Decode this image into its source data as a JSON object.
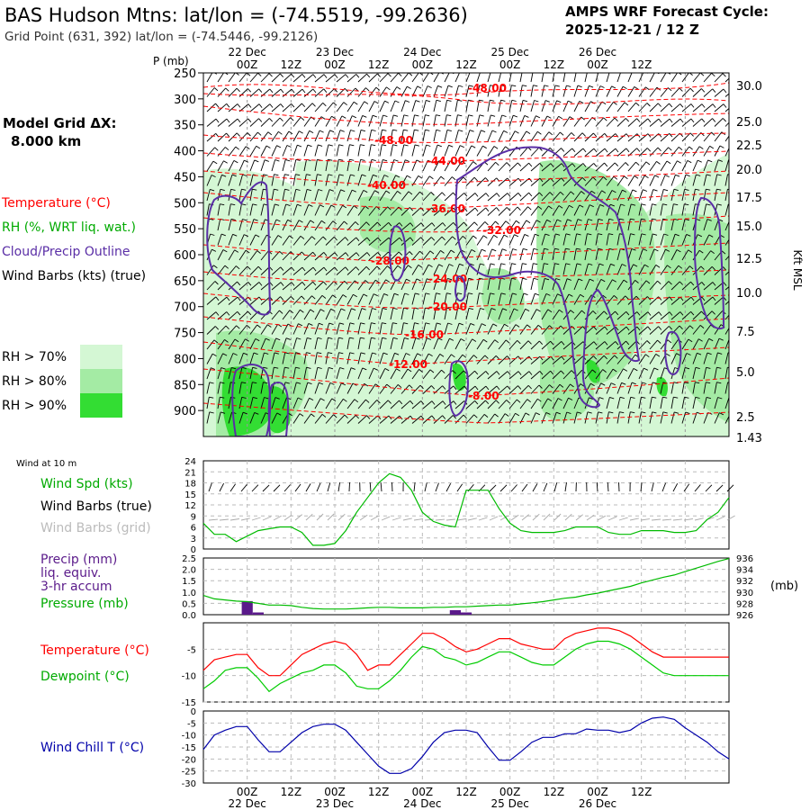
{
  "header": {
    "title": "BAS Hudson Mtns:  lat/lon = (-74.5519, -99.2636)",
    "subtitle": "Grid Point (631, 392) lat/lon = (-74.5446, -99.2126)",
    "cycle_line1": "AMPS WRF Forecast Cycle:",
    "cycle_line2": "2025-12-21 / 12  Z"
  },
  "legend": {
    "grid_line1": "Model Grid ΔX:",
    "grid_line2": "8.000 km",
    "temperature": "Temperature (°C)",
    "rh": "RH (%, WRT liq. wat.)",
    "cloud": "Cloud/Precip Outline",
    "wind": "Wind Barbs (kts) (true)",
    "rh70": "RH > 70%",
    "rh80": "RH > 80%",
    "rh90": "RH > 90%"
  },
  "colors": {
    "temperature": "#ff0000",
    "rh_text": "#00aa00",
    "cloud": "#5a2ea6",
    "rh70": "#d4f7d4",
    "rh80": "#a4eba4",
    "rh90": "#33dd33",
    "dewpoint": "#00cc00",
    "windchill": "#0000aa",
    "precip": "#5a1a8a"
  },
  "time_axis": {
    "date_labels": [
      "22 Dec",
      "23 Dec",
      "24 Dec",
      "25 Dec",
      "26 Dec"
    ],
    "hour_labels": [
      "00Z",
      "12Z",
      "00Z",
      "12Z",
      "00Z",
      "12Z",
      "00Z",
      "12Z",
      "00Z",
      "12Z"
    ]
  },
  "chart_data": [
    {
      "type": "heatmap",
      "name": "cross-section",
      "ylabel_left": "P (mb)",
      "ylabel_right": "Kft MSL",
      "pressure_ticks": [
        "250",
        "300",
        "350",
        "400",
        "450",
        "500",
        "550",
        "600",
        "650",
        "700",
        "750",
        "800",
        "850",
        "900"
      ],
      "height_ticks": [
        "30.0",
        "25.0",
        "22.5",
        "20.0",
        "17.5",
        "15.0",
        "12.5",
        "10.0",
        "7.5",
        "5.0",
        "2.5",
        "1.43"
      ],
      "isotherm_labels": [
        "-48.00",
        "-48.00",
        "-44.00",
        "-40.00",
        "-36.00",
        "-32.00",
        "-28.00",
        "-24.00",
        "-20.00",
        "-16.00",
        "-12.00",
        "-8.00"
      ]
    },
    {
      "type": "line",
      "name": "wind",
      "side_label": "Wind at 10 m",
      "labels": [
        "Wind Spd (kts)",
        "Wind Barbs (true)",
        "Wind Barbs (grid)"
      ],
      "yticks": [
        "24",
        "21",
        "18",
        "15",
        "12",
        "9",
        "6",
        "3",
        "0"
      ],
      "ylim": [
        0,
        24
      ],
      "series": [
        {
          "name": "Wind Spd (kts)",
          "x": [
            0,
            3,
            6,
            9,
            12,
            15,
            18,
            21,
            24,
            27,
            30,
            33,
            36,
            39,
            42,
            45,
            48,
            51,
            54,
            57,
            60,
            63,
            66,
            69,
            72,
            75,
            78,
            81,
            84,
            87,
            90,
            93,
            96,
            99,
            102,
            105,
            108,
            111,
            114,
            117,
            120,
            123,
            126,
            129,
            132,
            135,
            138,
            141,
            144
          ],
          "values": [
            7,
            4,
            4,
            2,
            3.5,
            5,
            5.5,
            6,
            6,
            4.5,
            1,
            1,
            1.5,
            5,
            10,
            14,
            18,
            20.5,
            19.5,
            16,
            10,
            7.5,
            6.5,
            6,
            16,
            16,
            16,
            11,
            7,
            5,
            4.5,
            4.5,
            4.5,
            5,
            6,
            6,
            6,
            4.5,
            4,
            4,
            5,
            5,
            5,
            4.5,
            4.5,
            5,
            8,
            10,
            14
          ]
        }
      ]
    },
    {
      "type": "line",
      "name": "precip-pressure",
      "labels": [
        "Precip (mm)",
        "liq. equiv.",
        "3-hr accum",
        "Pressure (mb)"
      ],
      "unit_right": "(mb)",
      "yticks_left": [
        "2.5",
        "2.0",
        "1.5",
        "1.0",
        "0.5",
        "0.0"
      ],
      "yticks_right": [
        "936",
        "934",
        "932",
        "930",
        "928",
        "926"
      ],
      "precip_bars": [
        {
          "x": 0,
          "value": 0.0
        },
        {
          "x": 12,
          "value": 0.6
        },
        {
          "x": 15,
          "value": 0.1
        },
        {
          "x": 69,
          "value": 0.2
        },
        {
          "x": 72,
          "value": 0.1
        }
      ],
      "series": [
        {
          "name": "Pressure (mb)",
          "x": [
            0,
            3,
            6,
            9,
            12,
            15,
            18,
            21,
            24,
            27,
            30,
            33,
            36,
            39,
            42,
            45,
            48,
            51,
            54,
            57,
            60,
            63,
            66,
            69,
            72,
            75,
            78,
            81,
            84,
            87,
            90,
            93,
            96,
            99,
            102,
            105,
            108,
            111,
            114,
            117,
            120,
            123,
            126,
            129,
            132,
            135,
            138,
            141,
            144
          ],
          "values": [
            929.4,
            928.8,
            928.6,
            928.4,
            928.3,
            928.0,
            927.7,
            927.7,
            927.6,
            927.3,
            927.1,
            927.0,
            927.0,
            927.0,
            927.1,
            927.2,
            927.3,
            927.3,
            927.2,
            927.2,
            927.2,
            927.3,
            927.3,
            927.4,
            927.4,
            927.5,
            927.6,
            927.7,
            927.7,
            927.9,
            928.1,
            928.3,
            928.6,
            928.9,
            929.1,
            929.5,
            929.8,
            930.2,
            930.6,
            931.0,
            931.6,
            932.1,
            932.6,
            933.0,
            933.6,
            934.2,
            934.8,
            935.4,
            935.9
          ]
        }
      ]
    },
    {
      "type": "line",
      "name": "temperature-dewpoint",
      "labels": [
        "Temperature (°C)",
        "Dewpoint (°C)"
      ],
      "yticks": [
        "-5",
        "-10",
        "-15"
      ],
      "ylim": [
        -15,
        0
      ],
      "series": [
        {
          "name": "Temperature (°C)",
          "x": [
            0,
            3,
            6,
            9,
            12,
            15,
            18,
            21,
            24,
            27,
            30,
            33,
            36,
            39,
            42,
            45,
            48,
            51,
            54,
            57,
            60,
            63,
            66,
            69,
            72,
            75,
            78,
            81,
            84,
            87,
            90,
            93,
            96,
            99,
            102,
            105,
            108,
            111,
            114,
            117,
            120,
            123,
            126,
            129,
            132,
            135,
            138,
            141,
            144
          ],
          "values": [
            -9,
            -7,
            -6.5,
            -6,
            -6,
            -8.5,
            -10,
            -10,
            -8,
            -6,
            -5,
            -4,
            -3.5,
            -4,
            -6,
            -9,
            -8,
            -8,
            -6,
            -4,
            -2,
            -2,
            -3,
            -4.5,
            -5.5,
            -5,
            -4,
            -3,
            -3,
            -4,
            -4.5,
            -5,
            -5,
            -3,
            -2,
            -1.5,
            -1,
            -1,
            -1.5,
            -2.5,
            -4,
            -5.5,
            -6.5,
            -6.5,
            -6.5,
            -6.5,
            -6.5,
            -6.5,
            -6.5
          ]
        },
        {
          "name": "Dewpoint (°C)",
          "x": [
            0,
            3,
            6,
            9,
            12,
            15,
            18,
            21,
            24,
            27,
            30,
            33,
            36,
            39,
            42,
            45,
            48,
            51,
            54,
            57,
            60,
            63,
            66,
            69,
            72,
            75,
            78,
            81,
            84,
            87,
            90,
            93,
            96,
            99,
            102,
            105,
            108,
            111,
            114,
            117,
            120,
            123,
            126,
            129,
            132,
            135,
            138,
            141,
            144
          ],
          "values": [
            -12.5,
            -11,
            -9,
            -8.5,
            -8.5,
            -10.5,
            -13,
            -11.5,
            -10.5,
            -9.5,
            -9,
            -8,
            -8,
            -9.5,
            -12,
            -12.5,
            -12.5,
            -11,
            -9,
            -6.5,
            -4.5,
            -5,
            -6.5,
            -7,
            -8,
            -7.5,
            -6.5,
            -5.5,
            -5.5,
            -6.5,
            -7.5,
            -8,
            -8,
            -6.5,
            -5,
            -4,
            -3.5,
            -3.5,
            -4,
            -5,
            -6.5,
            -8,
            -9.5,
            -10,
            -10,
            -10,
            -10,
            -10,
            -10
          ]
        }
      ]
    },
    {
      "type": "line",
      "name": "wind-chill",
      "labels": [
        "Wind Chill T (°C)"
      ],
      "yticks": [
        "0",
        "-5",
        "-10",
        "-15",
        "-20",
        "-25",
        "-30"
      ],
      "ylim": [
        -30,
        0
      ],
      "series": [
        {
          "name": "Wind Chill T (°C)",
          "x": [
            0,
            3,
            6,
            9,
            12,
            15,
            18,
            21,
            24,
            27,
            30,
            33,
            36,
            39,
            42,
            45,
            48,
            51,
            54,
            57,
            60,
            63,
            66,
            69,
            72,
            75,
            78,
            81,
            84,
            87,
            90,
            93,
            96,
            99,
            102,
            105,
            108,
            111,
            114,
            117,
            120,
            123,
            126,
            129,
            132,
            135,
            138,
            141,
            144
          ],
          "values": [
            -16,
            -10,
            -8,
            -6.5,
            -6.5,
            -12,
            -17,
            -17,
            -13,
            -9,
            -6.5,
            -5.5,
            -5.5,
            -8,
            -13,
            -18,
            -23,
            -26,
            -26,
            -24,
            -19,
            -13,
            -9,
            -8,
            -8,
            -9,
            -15,
            -20.5,
            -20.5,
            -17,
            -13,
            -11,
            -11,
            -9.5,
            -9.5,
            -7.5,
            -8,
            -8,
            -9,
            -8,
            -5,
            -3,
            -2.5,
            -3.5,
            -7,
            -10,
            -13,
            -17,
            -20
          ]
        }
      ]
    }
  ]
}
